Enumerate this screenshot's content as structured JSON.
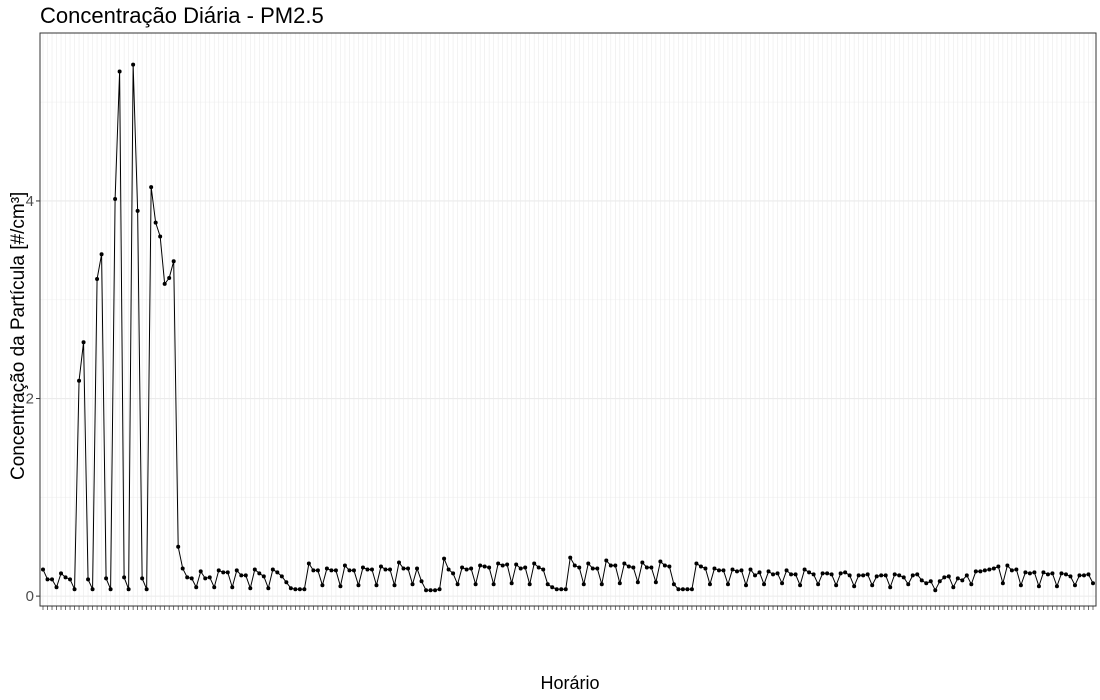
{
  "chart_data": {
    "type": "line",
    "title": "Concentração Diária - PM2.5",
    "xlabel": "Horário",
    "ylabel": "Concentração da Partícula [#/cm³]",
    "ylim": [
      -0.1,
      5.7
    ],
    "yticks": [
      0,
      2,
      4
    ],
    "grid": true,
    "markers": true,
    "line_color": "#000000",
    "panel_border_color": "#333333",
    "grid_color": "#ebebeb",
    "values": [
      0.27,
      0.17,
      0.17,
      0.09,
      0.23,
      0.19,
      0.17,
      0.07,
      2.18,
      2.57,
      0.17,
      0.07,
      3.21,
      3.46,
      0.18,
      0.07,
      4.02,
      5.31,
      0.19,
      0.07,
      5.38,
      3.9,
      0.18,
      0.07,
      4.14,
      3.78,
      3.64,
      3.16,
      3.22,
      3.39,
      0.5,
      0.28,
      0.19,
      0.18,
      0.09,
      0.25,
      0.18,
      0.19,
      0.09,
      0.26,
      0.24,
      0.24,
      0.09,
      0.26,
      0.21,
      0.21,
      0.08,
      0.27,
      0.23,
      0.2,
      0.08,
      0.27,
      0.24,
      0.2,
      0.14,
      0.08,
      0.07,
      0.07,
      0.07,
      0.33,
      0.26,
      0.26,
      0.11,
      0.28,
      0.26,
      0.26,
      0.1,
      0.31,
      0.26,
      0.26,
      0.11,
      0.29,
      0.27,
      0.27,
      0.11,
      0.3,
      0.27,
      0.27,
      0.11,
      0.34,
      0.28,
      0.28,
      0.12,
      0.28,
      0.15,
      0.06,
      0.06,
      0.06,
      0.07,
      0.38,
      0.27,
      0.23,
      0.12,
      0.29,
      0.27,
      0.28,
      0.12,
      0.31,
      0.3,
      0.29,
      0.12,
      0.33,
      0.31,
      0.32,
      0.13,
      0.32,
      0.28,
      0.29,
      0.12,
      0.33,
      0.29,
      0.27,
      0.12,
      0.09,
      0.07,
      0.07,
      0.07,
      0.39,
      0.31,
      0.29,
      0.12,
      0.33,
      0.28,
      0.28,
      0.12,
      0.36,
      0.31,
      0.31,
      0.13,
      0.33,
      0.3,
      0.29,
      0.14,
      0.34,
      0.29,
      0.29,
      0.14,
      0.35,
      0.31,
      0.3,
      0.12,
      0.07,
      0.07,
      0.07,
      0.07,
      0.33,
      0.3,
      0.28,
      0.12,
      0.28,
      0.26,
      0.26,
      0.12,
      0.27,
      0.25,
      0.26,
      0.11,
      0.27,
      0.21,
      0.24,
      0.12,
      0.25,
      0.22,
      0.23,
      0.13,
      0.26,
      0.22,
      0.22,
      0.11,
      0.27,
      0.24,
      0.22,
      0.12,
      0.23,
      0.23,
      0.22,
      0.11,
      0.23,
      0.24,
      0.21,
      0.1,
      0.21,
      0.21,
      0.22,
      0.11,
      0.2,
      0.21,
      0.21,
      0.09,
      0.22,
      0.21,
      0.19,
      0.12,
      0.21,
      0.22,
      0.16,
      0.13,
      0.15,
      0.06,
      0.15,
      0.19,
      0.2,
      0.09,
      0.18,
      0.16,
      0.21,
      0.12,
      0.25,
      0.25,
      0.26,
      0.27,
      0.28,
      0.3,
      0.13,
      0.31,
      0.26,
      0.27,
      0.11,
      0.24,
      0.23,
      0.24,
      0.1,
      0.24,
      0.22,
      0.23,
      0.1,
      0.23,
      0.22,
      0.2,
      0.11,
      0.21,
      0.21,
      0.22,
      0.13
    ]
  }
}
